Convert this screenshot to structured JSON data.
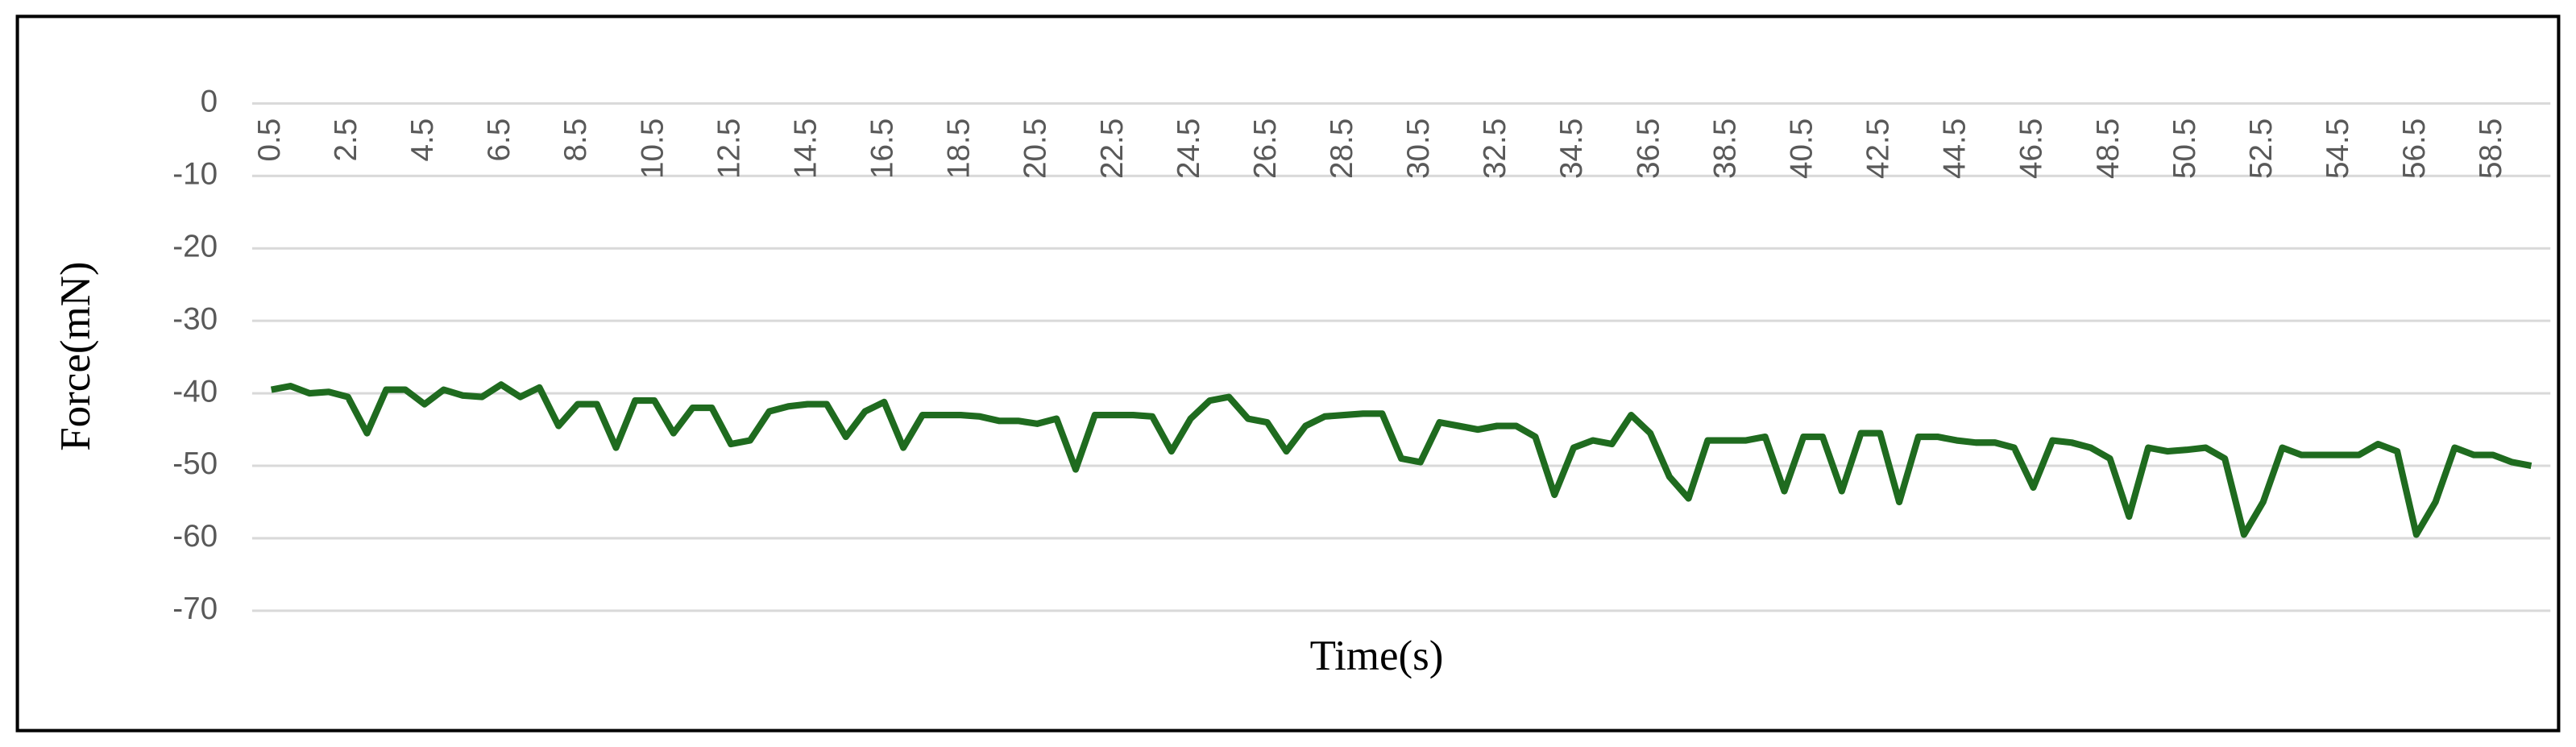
{
  "chart_data": {
    "type": "line",
    "x_label": "Time(s)",
    "y_label": "Force(mN)",
    "x": [
      0.5,
      1,
      1.5,
      2,
      2.5,
      3,
      3.5,
      4,
      4.5,
      5,
      5.5,
      6,
      6.5,
      7,
      7.5,
      8,
      8.5,
      9,
      9.5,
      10,
      10.5,
      11,
      11.5,
      12,
      12.5,
      13,
      13.5,
      14,
      14.5,
      15,
      15.5,
      16,
      16.5,
      17,
      17.5,
      18,
      18.5,
      19,
      19.5,
      20,
      20.5,
      21,
      21.5,
      22,
      22.5,
      23,
      23.5,
      24,
      24.5,
      25,
      25.5,
      26,
      26.5,
      27,
      27.5,
      28,
      28.5,
      29,
      29.5,
      30,
      30.5,
      31,
      31.5,
      32,
      32.5,
      33,
      33.5,
      34,
      34.5,
      35,
      35.5,
      36,
      36.5,
      37,
      37.5,
      38,
      38.5,
      39,
      39.5,
      40,
      40.5,
      41,
      41.5,
      42,
      42.5,
      43,
      43.5,
      44,
      44.5,
      45,
      45.5,
      46,
      46.5,
      47,
      47.5,
      48,
      48.5,
      49,
      49.5,
      50,
      50.5,
      51,
      51.5,
      52,
      52.5,
      53,
      53.5,
      54,
      54.5,
      55,
      55.5,
      56,
      56.5,
      57,
      57.5,
      58,
      58.5,
      59,
      59.5
    ],
    "series": [
      {
        "name": "Force",
        "color": "#1f6b1f",
        "values": [
          -39.5,
          -39,
          -40,
          -39.8,
          -40.5,
          -45.5,
          -39.5,
          -39.5,
          -41.5,
          -39.5,
          -40.3,
          -40.5,
          -38.8,
          -40.5,
          -39.2,
          -44.5,
          -41.5,
          -41.5,
          -47.5,
          -41,
          -41,
          -45.5,
          -42,
          -42,
          -47,
          -46.5,
          -42.5,
          -41.8,
          -41.5,
          -41.5,
          -46,
          -42.5,
          -41.2,
          -47.5,
          -43,
          -43,
          -43,
          -43.2,
          -43.8,
          -43.8,
          -44.2,
          -43.5,
          -50.5,
          -43,
          -43,
          -43,
          -43.2,
          -48,
          -43.5,
          -41,
          -40.5,
          -43.5,
          -44,
          -48,
          -44.5,
          -43.2,
          -43,
          -42.8,
          -42.8,
          -49,
          -49.5,
          -44,
          -44.5,
          -45,
          -44.5,
          -44.5,
          -46,
          -54,
          -47.5,
          -46.5,
          -47,
          -43,
          -45.5,
          -51.5,
          -54.5,
          -46.5,
          -46.5,
          -46.5,
          -46,
          -53.5,
          -46,
          -46,
          -53.5,
          -45.5,
          -45.5,
          -55,
          -46,
          -46,
          -46.5,
          -46.8,
          -46.8,
          -47.5,
          -53,
          -46.5,
          -46.8,
          -47.5,
          -49,
          -57,
          -47.5,
          -48,
          -47.8,
          -47.5,
          -49,
          -59.5,
          -55,
          -47.5,
          -48.5,
          -48.5,
          -48.5,
          -48.5,
          -47,
          -48,
          -59.5,
          -55,
          -47.5,
          -48.5,
          -48.5,
          -49.5,
          -50
        ]
      }
    ],
    "xlim": [
      0,
      60
    ],
    "xticks": [
      0.5,
      2.5,
      4.5,
      6.5,
      8.5,
      10.5,
      12.5,
      14.5,
      16.5,
      18.5,
      20.5,
      22.5,
      24.5,
      26.5,
      28.5,
      30.5,
      32.5,
      34.5,
      36.5,
      38.5,
      40.5,
      42.5,
      44.5,
      46.5,
      48.5,
      50.5,
      52.5,
      54.5,
      56.5,
      58.5
    ],
    "ylim": [
      -70,
      0
    ],
    "yticks": [
      0,
      -10,
      -20,
      -30,
      -40,
      -50,
      -60,
      -70
    ],
    "grid": true
  }
}
